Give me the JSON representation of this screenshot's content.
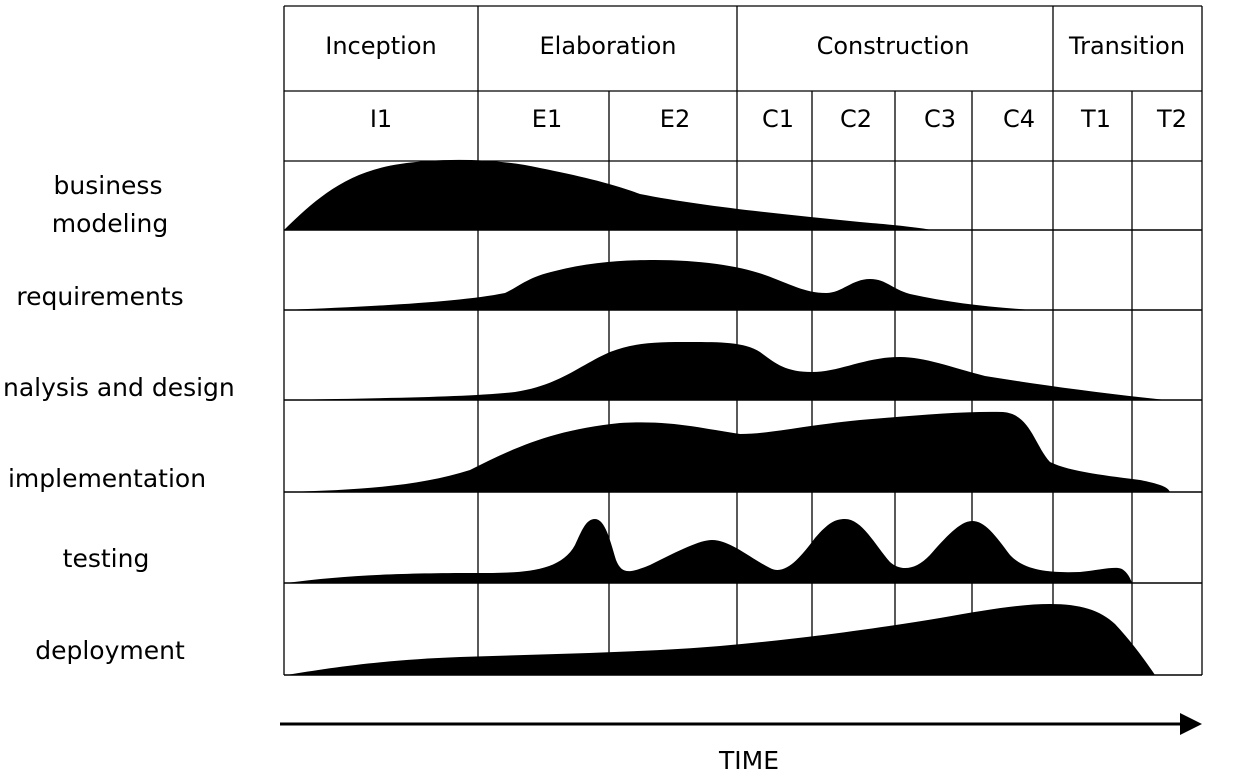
{
  "phases": [
    {
      "label": "Inception"
    },
    {
      "label": "Elaboration"
    },
    {
      "label": "Construction"
    },
    {
      "label": "Transition"
    }
  ],
  "iterations": [
    {
      "label": "I1"
    },
    {
      "label": "E1"
    },
    {
      "label": "E2"
    },
    {
      "label": "C1"
    },
    {
      "label": "C2"
    },
    {
      "label": "C3"
    },
    {
      "label": "C4"
    },
    {
      "label": "T1"
    },
    {
      "label": "T2"
    }
  ],
  "disciplines": [
    {
      "label_lines": [
        "business",
        "modeling"
      ]
    },
    {
      "label_lines": [
        "requirements"
      ]
    },
    {
      "label_lines": [
        "nalysis and design"
      ]
    },
    {
      "label_lines": [
        "implementation"
      ]
    },
    {
      "label_lines": [
        "testing"
      ]
    },
    {
      "label_lines": [
        "deployment"
      ]
    }
  ],
  "axis": {
    "label": "TIME"
  },
  "colors": {
    "line": "#000000",
    "fill": "#000000",
    "background": "#ffffff"
  }
}
